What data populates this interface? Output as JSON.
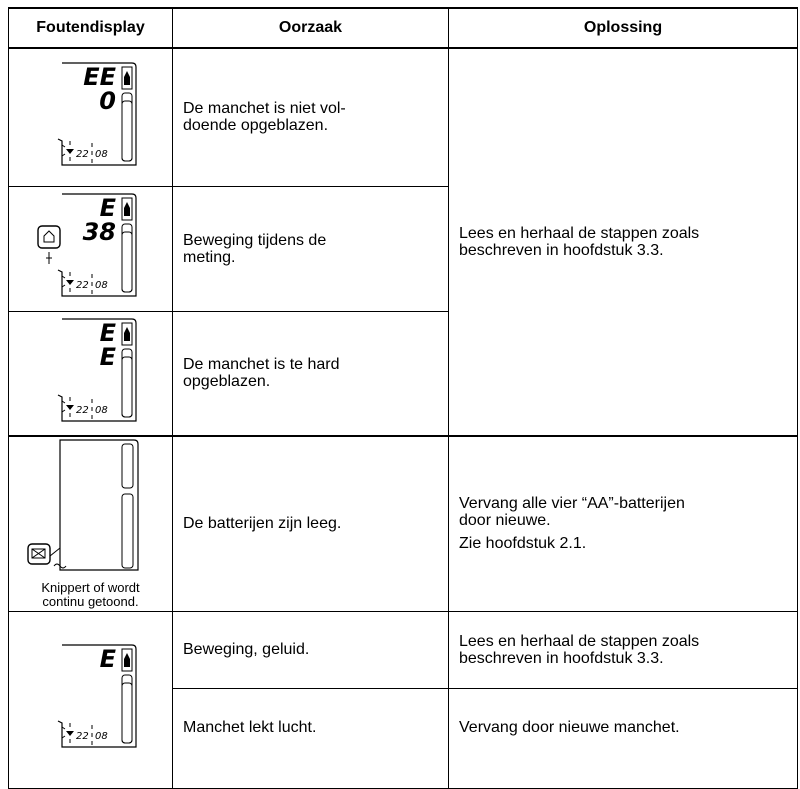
{
  "table": {
    "header": [
      "Foutendisplay",
      "Oorzaak",
      "Oplossing"
    ],
    "rows": [
      {
        "display": {
          "lines": [
            "EE",
            "0"
          ],
          "time": [
            "22",
            "08"
          ]
        },
        "cause": [
          "De manchet is niet vol-",
          "doende opgeblazen."
        ]
      },
      {
        "display": {
          "lines": [
            "E",
            "38"
          ],
          "time": [
            "22",
            "08"
          ]
        },
        "cause": [
          "Beweging tijdens de",
          "meting."
        ]
      },
      {
        "display": {
          "lines": [
            "E",
            "E"
          ],
          "time": [
            "22",
            "08"
          ]
        },
        "cause": [
          "De manchet is te hard",
          "opgeblazen."
        ]
      },
      {
        "display": {
          "caption": [
            "Knippert of wordt",
            "continu getoond."
          ]
        },
        "cause": [
          "De batterijen zijn leeg."
        ],
        "solution": [
          "Vervang alle vier “AA”-batterijen",
          "door nieuwe.",
          "Zie hoofdstuk 2.1."
        ]
      },
      {
        "display": {
          "lines": [
            "E"
          ],
          "time": [
            "22",
            "08"
          ]
        },
        "cause": [
          "Beweging, geluid."
        ],
        "solution": [
          "Lees en herhaal de stappen zoals",
          "beschreven in hoofdstuk 3.3."
        ]
      },
      {
        "cause": [
          "Manchet lekt lucht."
        ],
        "solution": [
          "Vervang door nieuwe manchet."
        ]
      }
    ],
    "shared_solution": [
      "Lees en herhaal de stappen zoals",
      "beschreven in hoofdstuk 3.3."
    ]
  }
}
